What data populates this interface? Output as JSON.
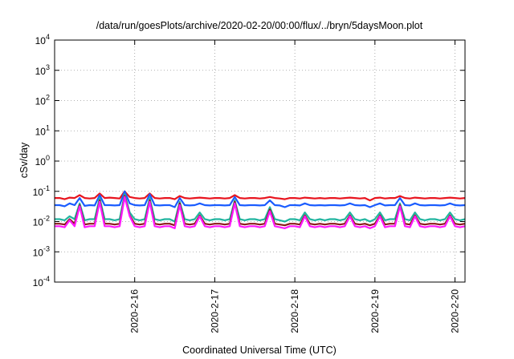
{
  "chart_data": {
    "type": "line",
    "title": "/data/run/goesPlots/archive/2020-02-20/00:00/flux/../bryn/5daysMoon.plot",
    "xlabel": "Coordinated Universal Time (UTC)",
    "ylabel": "cSv/day",
    "yscale": "log",
    "ylim": [
      0.0001,
      10000
    ],
    "xlim": [
      "2020-02-15T00:00",
      "2020-02-20T03:00"
    ],
    "grid": true,
    "x_ticks": [
      "2020-2-16",
      "2020-2-17",
      "2020-2-18",
      "2020-2-19",
      "2020-2-20"
    ],
    "y_ticks": [
      {
        "value": 0.0001,
        "base": "10",
        "exp": "-4"
      },
      {
        "value": 0.001,
        "base": "10",
        "exp": "-3"
      },
      {
        "value": 0.01,
        "base": "10",
        "exp": "-2"
      },
      {
        "value": 0.1,
        "base": "10",
        "exp": "-1"
      },
      {
        "value": 1,
        "base": "10",
        "exp": "0"
      },
      {
        "value": 10,
        "base": "10",
        "exp": "1"
      },
      {
        "value": 100,
        "base": "10",
        "exp": "2"
      },
      {
        "value": 1000,
        "base": "10",
        "exp": "3"
      },
      {
        "value": 10000,
        "base": "10",
        "exp": "4"
      }
    ],
    "sample_interval_hours": 1.5,
    "series": [
      {
        "color": "#e8141e",
        "values": [
          0.06,
          0.06,
          0.055,
          0.062,
          0.06,
          0.075,
          0.06,
          0.058,
          0.06,
          0.085,
          0.06,
          0.062,
          0.06,
          0.058,
          0.1,
          0.065,
          0.06,
          0.058,
          0.06,
          0.085,
          0.06,
          0.058,
          0.06,
          0.06,
          0.055,
          0.07,
          0.06,
          0.058,
          0.06,
          0.062,
          0.06,
          0.058,
          0.06,
          0.06,
          0.058,
          0.06,
          0.075,
          0.06,
          0.058,
          0.06,
          0.06,
          0.058,
          0.06,
          0.065,
          0.06,
          0.058,
          0.055,
          0.06,
          0.06,
          0.058,
          0.062,
          0.06,
          0.058,
          0.06,
          0.058,
          0.06,
          0.06,
          0.058,
          0.06,
          0.062,
          0.06,
          0.058,
          0.06,
          0.05,
          0.06,
          0.062,
          0.058,
          0.06,
          0.06,
          0.07,
          0.06,
          0.058,
          0.062,
          0.06,
          0.058,
          0.06,
          0.06,
          0.058,
          0.06,
          0.062,
          0.06,
          0.058,
          0.06,
          0.06
        ]
      },
      {
        "color": "#1a5cff",
        "values": [
          0.035,
          0.035,
          0.032,
          0.04,
          0.035,
          0.06,
          0.033,
          0.035,
          0.034,
          0.075,
          0.035,
          0.035,
          0.034,
          0.035,
          0.1,
          0.04,
          0.035,
          0.034,
          0.035,
          0.08,
          0.035,
          0.034,
          0.035,
          0.035,
          0.03,
          0.06,
          0.035,
          0.034,
          0.035,
          0.04,
          0.035,
          0.034,
          0.035,
          0.035,
          0.034,
          0.035,
          0.065,
          0.035,
          0.034,
          0.035,
          0.035,
          0.034,
          0.035,
          0.05,
          0.035,
          0.034,
          0.03,
          0.035,
          0.035,
          0.034,
          0.04,
          0.035,
          0.034,
          0.035,
          0.034,
          0.035,
          0.035,
          0.034,
          0.035,
          0.04,
          0.035,
          0.034,
          0.035,
          0.03,
          0.035,
          0.04,
          0.034,
          0.035,
          0.035,
          0.06,
          0.035,
          0.034,
          0.04,
          0.035,
          0.034,
          0.035,
          0.035,
          0.034,
          0.035,
          0.04,
          0.035,
          0.034,
          0.035,
          0.035
        ]
      },
      {
        "color": "#22b5a0",
        "values": [
          0.012,
          0.012,
          0.011,
          0.015,
          0.012,
          0.04,
          0.011,
          0.012,
          0.012,
          0.06,
          0.012,
          0.012,
          0.011,
          0.012,
          0.08,
          0.02,
          0.012,
          0.011,
          0.012,
          0.06,
          0.012,
          0.011,
          0.012,
          0.012,
          0.01,
          0.045,
          0.012,
          0.011,
          0.012,
          0.02,
          0.012,
          0.011,
          0.012,
          0.012,
          0.011,
          0.012,
          0.05,
          0.012,
          0.011,
          0.012,
          0.012,
          0.011,
          0.012,
          0.03,
          0.012,
          0.011,
          0.01,
          0.012,
          0.012,
          0.011,
          0.02,
          0.012,
          0.011,
          0.012,
          0.011,
          0.012,
          0.012,
          0.011,
          0.012,
          0.02,
          0.012,
          0.011,
          0.012,
          0.01,
          0.012,
          0.02,
          0.011,
          0.012,
          0.012,
          0.04,
          0.012,
          0.011,
          0.02,
          0.012,
          0.011,
          0.012,
          0.012,
          0.011,
          0.012,
          0.02,
          0.012,
          0.011,
          0.012,
          0.012
        ]
      },
      {
        "color": "#8b1a1a",
        "values": [
          0.0085,
          0.0085,
          0.008,
          0.012,
          0.0085,
          0.035,
          0.008,
          0.0085,
          0.0085,
          0.05,
          0.0085,
          0.0085,
          0.008,
          0.0085,
          0.07,
          0.016,
          0.0085,
          0.008,
          0.0085,
          0.05,
          0.0085,
          0.008,
          0.0085,
          0.0085,
          0.0075,
          0.04,
          0.0085,
          0.008,
          0.0085,
          0.016,
          0.0085,
          0.008,
          0.0085,
          0.0085,
          0.008,
          0.0085,
          0.045,
          0.0085,
          0.008,
          0.0085,
          0.0085,
          0.008,
          0.0085,
          0.025,
          0.0085,
          0.008,
          0.0075,
          0.0085,
          0.0085,
          0.008,
          0.016,
          0.0085,
          0.008,
          0.0085,
          0.008,
          0.0085,
          0.0085,
          0.008,
          0.0085,
          0.016,
          0.0085,
          0.008,
          0.0085,
          0.0075,
          0.0085,
          0.016,
          0.008,
          0.0085,
          0.0085,
          0.035,
          0.0085,
          0.008,
          0.016,
          0.0085,
          0.008,
          0.0085,
          0.0085,
          0.008,
          0.0085,
          0.016,
          0.0085,
          0.008,
          0.0085,
          0.0085
        ]
      },
      {
        "color": "#ff1aff",
        "values": [
          0.007,
          0.007,
          0.0065,
          0.011,
          0.007,
          0.032,
          0.0065,
          0.007,
          0.007,
          0.045,
          0.007,
          0.007,
          0.0065,
          0.007,
          0.065,
          0.015,
          0.007,
          0.0065,
          0.007,
          0.045,
          0.007,
          0.0065,
          0.007,
          0.007,
          0.006,
          0.035,
          0.007,
          0.0065,
          0.007,
          0.015,
          0.007,
          0.0065,
          0.007,
          0.007,
          0.0065,
          0.007,
          0.04,
          0.007,
          0.0065,
          0.007,
          0.007,
          0.0065,
          0.007,
          0.022,
          0.007,
          0.0065,
          0.006,
          0.007,
          0.007,
          0.0065,
          0.015,
          0.007,
          0.0065,
          0.007,
          0.0065,
          0.007,
          0.007,
          0.0065,
          0.007,
          0.015,
          0.007,
          0.0065,
          0.007,
          0.006,
          0.007,
          0.015,
          0.0065,
          0.007,
          0.007,
          0.032,
          0.007,
          0.0065,
          0.015,
          0.007,
          0.0065,
          0.007,
          0.007,
          0.0065,
          0.007,
          0.015,
          0.007,
          0.0065,
          0.007,
          0.007
        ]
      }
    ]
  }
}
